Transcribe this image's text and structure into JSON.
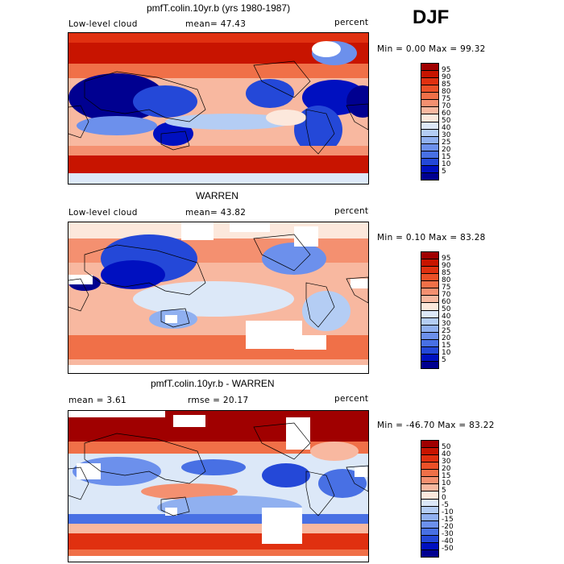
{
  "season": "DJF",
  "panels": [
    {
      "title": "pmfT.colin.10yr.b (yrs 1980-1987)",
      "left_label": "Low-level cloud",
      "mid_label": "mean=  47.43",
      "units": "percent",
      "minmax": "Min =   0.00 Max =  99.32",
      "levels": [
        "95",
        "90",
        "85",
        "80",
        "75",
        "70",
        "60",
        "50",
        "40",
        "30",
        "25",
        "20",
        "15",
        "10",
        "5"
      ],
      "colors": [
        "#a00000",
        "#c81400",
        "#e03010",
        "#ec5028",
        "#f07048",
        "#f49070",
        "#f8b8a0",
        "#fce8dc",
        "#dce8f8",
        "#b4cdf4",
        "#90b0f0",
        "#6c90ec",
        "#4870e4",
        "#2448d8",
        "#0010c0",
        "#000090"
      ]
    },
    {
      "title": "WARREN",
      "left_label": "Low-level cloud",
      "mid_label": "mean=  43.82",
      "units": "percent",
      "minmax": "Min =   0.10 Max =  83.28",
      "levels": [
        "95",
        "90",
        "85",
        "80",
        "75",
        "70",
        "60",
        "50",
        "40",
        "30",
        "25",
        "20",
        "15",
        "10",
        "5"
      ],
      "colors": [
        "#a00000",
        "#c81400",
        "#e03010",
        "#ec5028",
        "#f07048",
        "#f49070",
        "#f8b8a0",
        "#fce8dc",
        "#dce8f8",
        "#b4cdf4",
        "#90b0f0",
        "#6c90ec",
        "#4870e4",
        "#2448d8",
        "#0010c0",
        "#000090"
      ]
    },
    {
      "title": "pmfT.colin.10yr.b - WARREN",
      "left_label": "mean =    3.61",
      "mid_label": "rmse =  20.17",
      "units": "percent",
      "minmax": "Min = -46.70 Max =  83.22",
      "levels": [
        "50",
        "40",
        "30",
        "20",
        "15",
        "10",
        "5",
        "0",
        "-5",
        "-10",
        "-15",
        "-20",
        "-30",
        "-40",
        "-50"
      ],
      "colors": [
        "#a00000",
        "#c81400",
        "#e03010",
        "#ec5028",
        "#f07048",
        "#f49070",
        "#f8b8a0",
        "#fce8dc",
        "#dce8f8",
        "#b4cdf4",
        "#90b0f0",
        "#6c90ec",
        "#4870e4",
        "#2448d8",
        "#0010c0",
        "#000090"
      ]
    }
  ]
}
